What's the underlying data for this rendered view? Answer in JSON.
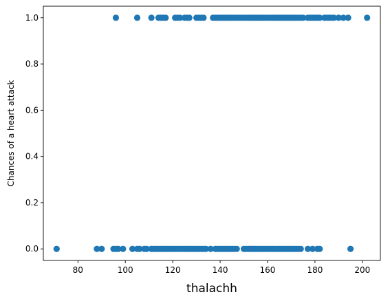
{
  "chart_data": {
    "type": "scatter",
    "title": "",
    "xlabel": "thalachh",
    "ylabel": "Chances of a heart attack",
    "xlim": [
      65.4,
      207.6
    ],
    "ylim": [
      -0.05,
      1.05
    ],
    "xticks": [
      80,
      100,
      120,
      140,
      160,
      180,
      200
    ],
    "yticks": [
      0.0,
      0.2,
      0.4,
      0.6,
      0.8,
      1.0
    ],
    "xtick_labels": [
      "80",
      "100",
      "120",
      "140",
      "160",
      "180",
      "200"
    ],
    "ytick_labels": [
      "0.0",
      "0.2",
      "0.4",
      "0.6",
      "0.8",
      "1.0"
    ],
    "grid": false,
    "marker_color": "#1f77b4",
    "series": [
      {
        "values_y": 1,
        "x": [
          96,
          105,
          111,
          114,
          115,
          116,
          117,
          121,
          122,
          123,
          125,
          126,
          127,
          130,
          131,
          132,
          133,
          137,
          138,
          139,
          140,
          141,
          142,
          143,
          144,
          145,
          146,
          147,
          148,
          149,
          150,
          151,
          152,
          153,
          154,
          155,
          156,
          157,
          158,
          159,
          160,
          161,
          162,
          163,
          164,
          165,
          166,
          167,
          168,
          169,
          170,
          171,
          172,
          173,
          174,
          175,
          177,
          178,
          179,
          180,
          181,
          182,
          184,
          185,
          186,
          187,
          188,
          190,
          192,
          194,
          202
        ]
      },
      {
        "values_y": 0,
        "x": [
          71,
          88,
          90,
          95,
          96,
          97,
          99,
          103,
          105,
          106,
          108,
          109,
          111,
          112,
          113,
          114,
          115,
          116,
          117,
          118,
          119,
          120,
          121,
          122,
          123,
          124,
          125,
          126,
          127,
          128,
          129,
          130,
          131,
          132,
          133,
          134,
          136,
          138,
          139,
          140,
          141,
          142,
          143,
          144,
          145,
          146,
          147,
          150,
          151,
          152,
          153,
          154,
          155,
          156,
          157,
          158,
          159,
          160,
          161,
          162,
          163,
          164,
          165,
          166,
          167,
          168,
          169,
          170,
          171,
          172,
          173,
          174,
          177,
          179,
          181,
          182,
          195
        ]
      }
    ]
  }
}
